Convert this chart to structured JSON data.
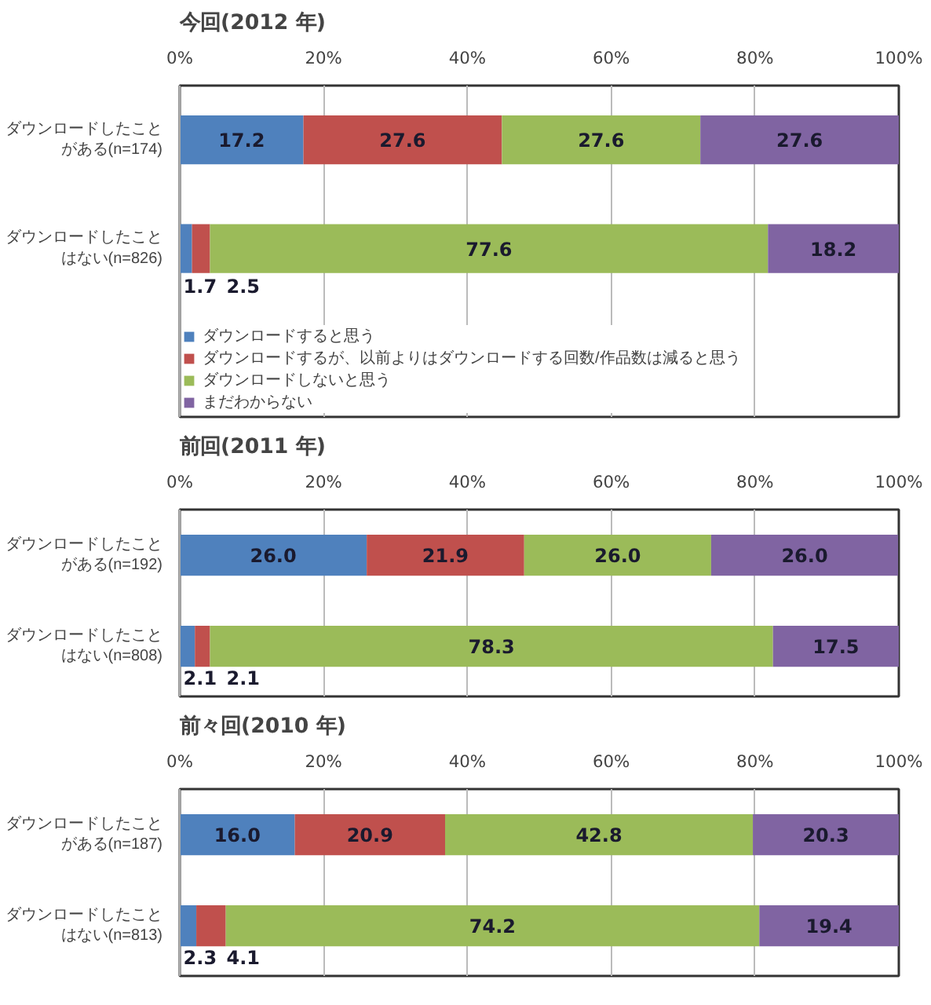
{
  "chart_data": [
    {
      "type": "bar",
      "orientation": "horizontal",
      "stacked": true,
      "title": "今回(2012 年)",
      "categories": [
        "ダウンロードしたことがある(n=174)",
        "ダウンロードしたことはない(n=826)"
      ],
      "series": [
        {
          "name": "ダウンロードすると思う",
          "color": "#4f81bd",
          "values": [
            17.2,
            1.7
          ],
          "value_labels": [
            "17.2",
            "1.7"
          ]
        },
        {
          "name": "ダウンロードするが、以前よりはダウンロードする回数/作品数は減ると思う",
          "color": "#c0504d",
          "values": [
            27.6,
            2.5
          ],
          "value_labels": [
            "27.6",
            "2.5"
          ]
        },
        {
          "name": "ダウンロードしないと思う",
          "color": "#9bbb59",
          "values": [
            27.6,
            77.6
          ],
          "value_labels": [
            "27.6",
            "77.6"
          ]
        },
        {
          "name": "まだわからない",
          "color": "#8064a2",
          "values": [
            27.6,
            18.2
          ],
          "value_labels": [
            "27.6",
            "18.2"
          ]
        }
      ],
      "xlim": [
        0,
        100
      ],
      "xticks": [
        {
          "value": 0,
          "label": "0%"
        },
        {
          "value": 20,
          "label": "20%"
        },
        {
          "value": 40,
          "label": "40%"
        },
        {
          "value": 60,
          "label": "60%"
        },
        {
          "value": 80,
          "label": "80%"
        },
        {
          "value": 100,
          "label": "100%"
        }
      ],
      "grid": "x",
      "legend": "bottom"
    },
    {
      "type": "bar",
      "orientation": "horizontal",
      "stacked": true,
      "title": "前回(2011 年)",
      "categories": [
        "ダウンロードしたことがある(n=192)",
        "ダウンロードしたことはない(n=808)"
      ],
      "series": [
        {
          "color": "#4f81bd",
          "values": [
            26.0,
            2.1
          ],
          "value_labels": [
            "26.0",
            "2.1"
          ]
        },
        {
          "color": "#c0504d",
          "values": [
            21.9,
            2.1
          ],
          "value_labels": [
            "21.9",
            "2.1"
          ]
        },
        {
          "color": "#9bbb59",
          "values": [
            26.0,
            78.3
          ],
          "value_labels": [
            "26.0",
            "78.3"
          ]
        },
        {
          "color": "#8064a2",
          "values": [
            26.0,
            17.5
          ],
          "value_labels": [
            "26.0",
            "17.5"
          ]
        }
      ],
      "xlim": [
        0,
        100
      ],
      "xticks": [
        {
          "value": 0,
          "label": "0%"
        },
        {
          "value": 20,
          "label": "20%"
        },
        {
          "value": 40,
          "label": "40%"
        },
        {
          "value": 60,
          "label": "60%"
        },
        {
          "value": 80,
          "label": "80%"
        },
        {
          "value": 100,
          "label": "100%"
        }
      ],
      "grid": "x"
    },
    {
      "type": "bar",
      "orientation": "horizontal",
      "stacked": true,
      "title": "前々回(2010 年)",
      "categories": [
        "ダウンロードしたことがある(n=187)",
        "ダウンロードしたことはない(n=813)"
      ],
      "series": [
        {
          "color": "#4f81bd",
          "values": [
            16.0,
            2.3
          ],
          "value_labels": [
            "16.0",
            "2.3"
          ]
        },
        {
          "color": "#c0504d",
          "values": [
            20.9,
            4.1
          ],
          "value_labels": [
            "20.9",
            "4.1"
          ]
        },
        {
          "color": "#9bbb59",
          "values": [
            42.8,
            74.2
          ],
          "value_labels": [
            "42.8",
            "74.2"
          ]
        },
        {
          "color": "#8064a2",
          "values": [
            20.3,
            19.4
          ],
          "value_labels": [
            "20.3",
            "19.4"
          ]
        }
      ],
      "xlim": [
        0,
        100
      ],
      "xticks": [
        {
          "value": 0,
          "label": "0%"
        },
        {
          "value": 20,
          "label": "20%"
        },
        {
          "value": 40,
          "label": "40%"
        },
        {
          "value": 60,
          "label": "60%"
        },
        {
          "value": 80,
          "label": "80%"
        },
        {
          "value": 100,
          "label": "100%"
        }
      ],
      "grid": "x"
    }
  ]
}
